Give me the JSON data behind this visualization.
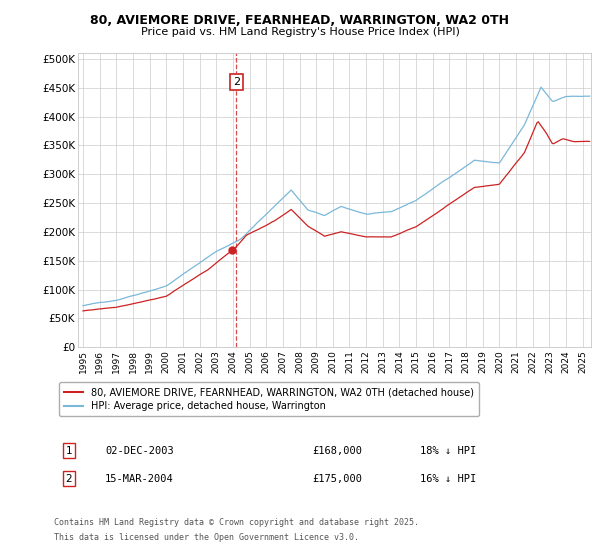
{
  "title_line1": "80, AVIEMORE DRIVE, FEARNHEAD, WARRINGTON, WA2 0TH",
  "title_line2": "Price paid vs. HM Land Registry's House Price Index (HPI)",
  "ylabel_ticks": [
    "£0",
    "£50K",
    "£100K",
    "£150K",
    "£200K",
    "£250K",
    "£300K",
    "£350K",
    "£400K",
    "£450K",
    "£500K"
  ],
  "ytick_vals": [
    0,
    50000,
    100000,
    150000,
    200000,
    250000,
    300000,
    350000,
    400000,
    450000,
    500000
  ],
  "xlim_start": 1994.7,
  "xlim_end": 2025.5,
  "ylim": [
    0,
    510000
  ],
  "hpi_color": "#7ab8d9",
  "price_color": "#cc2222",
  "vline_color": "#cc2222",
  "annotation_box_color": "#cc2222",
  "grid_color": "#cccccc",
  "legend_label_red": "80, AVIEMORE DRIVE, FEARNHEAD, WARRINGTON, WA2 0TH (detached house)",
  "legend_label_blue": "HPI: Average price, detached house, Warrington",
  "transaction1_num": "1",
  "transaction1_date": "02-DEC-2003",
  "transaction1_price": "£168,000",
  "transaction1_hpi": "18% ↓ HPI",
  "transaction1_x": 2003.92,
  "transaction1_y": 168000,
  "transaction2_num": "2",
  "transaction2_date": "15-MAR-2004",
  "transaction2_price": "£175,000",
  "transaction2_hpi": "16% ↓ HPI",
  "transaction2_x": 2004.21,
  "transaction2_y": 175000,
  "footnote1": "Contains HM Land Registry data © Crown copyright and database right 2025.",
  "footnote2": "This data is licensed under the Open Government Licence v3.0.",
  "xtick_years": [
    1995,
    1996,
    1997,
    1998,
    1999,
    2000,
    2001,
    2002,
    2003,
    2004,
    2005,
    2006,
    2007,
    2008,
    2009,
    2010,
    2011,
    2012,
    2013,
    2014,
    2015,
    2016,
    2017,
    2018,
    2019,
    2020,
    2021,
    2022,
    2023,
    2024,
    2025
  ]
}
